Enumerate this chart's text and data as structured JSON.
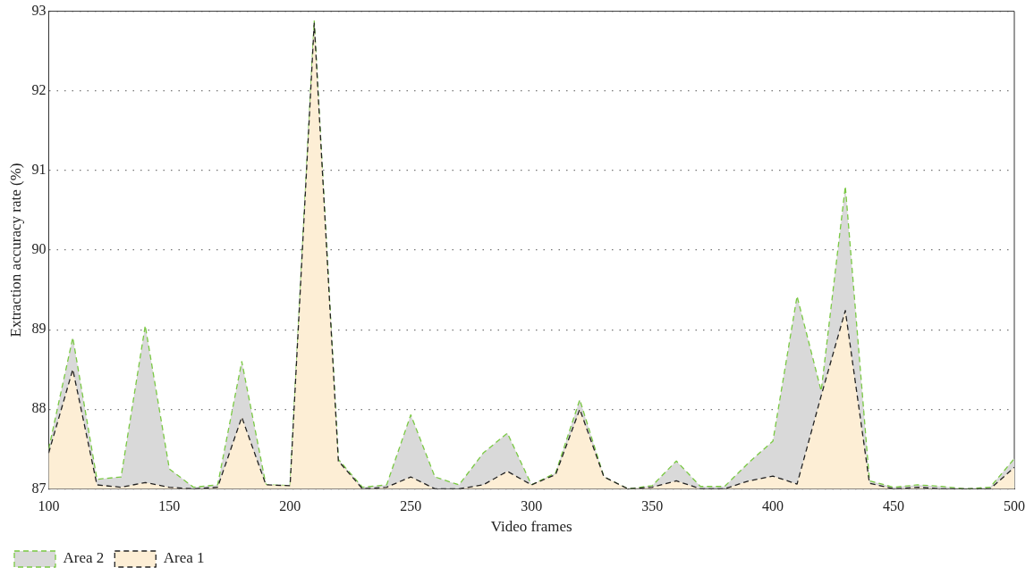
{
  "chart_data": {
    "type": "area",
    "xlabel": "Video frames",
    "ylabel": "Extraction accuracy rate (%)",
    "x": [
      100,
      110,
      120,
      130,
      140,
      150,
      160,
      170,
      180,
      190,
      200,
      210,
      220,
      230,
      240,
      250,
      260,
      270,
      280,
      290,
      300,
      310,
      320,
      330,
      340,
      350,
      360,
      370,
      380,
      390,
      400,
      410,
      420,
      430,
      440,
      450,
      460,
      470,
      480,
      490,
      500
    ],
    "series": [
      {
        "name": "Area 1",
        "color": "#fdeed5",
        "values": [
          87.45,
          88.5,
          87.05,
          87.02,
          87.08,
          87.02,
          87.0,
          87.02,
          87.9,
          87.05,
          87.04,
          92.85,
          87.35,
          87.0,
          87.02,
          87.15,
          87.0,
          87.0,
          87.05,
          87.22,
          87.05,
          87.18,
          88.0,
          87.15,
          87.0,
          87.02,
          87.1,
          87.0,
          87.0,
          87.1,
          87.16,
          87.06,
          88.17,
          89.24,
          87.07,
          87.0,
          87.02,
          87.0,
          87.0,
          87.0,
          87.27
        ]
      },
      {
        "name": "Area 2",
        "color": "#d9d9d9",
        "values": [
          87.5,
          88.9,
          87.12,
          87.15,
          89.05,
          87.25,
          87.02,
          87.05,
          88.6,
          87.05,
          87.04,
          92.88,
          87.37,
          87.02,
          87.05,
          87.93,
          87.15,
          87.05,
          87.45,
          87.7,
          87.05,
          87.2,
          88.12,
          87.15,
          87.0,
          87.04,
          87.35,
          87.03,
          87.03,
          87.33,
          87.6,
          89.42,
          88.23,
          90.8,
          87.1,
          87.02,
          87.05,
          87.03,
          87.0,
          87.02,
          87.38
        ]
      }
    ],
    "xlim": [
      100,
      500
    ],
    "xticks": [
      100,
      150,
      200,
      250,
      300,
      350,
      400,
      450,
      500
    ],
    "ylim": [
      87,
      93
    ],
    "yticks": [
      87,
      88,
      89,
      90,
      91,
      92,
      93
    ],
    "grid": "y",
    "legend": "bottom",
    "marker": "none",
    "line_style": "dashed"
  }
}
